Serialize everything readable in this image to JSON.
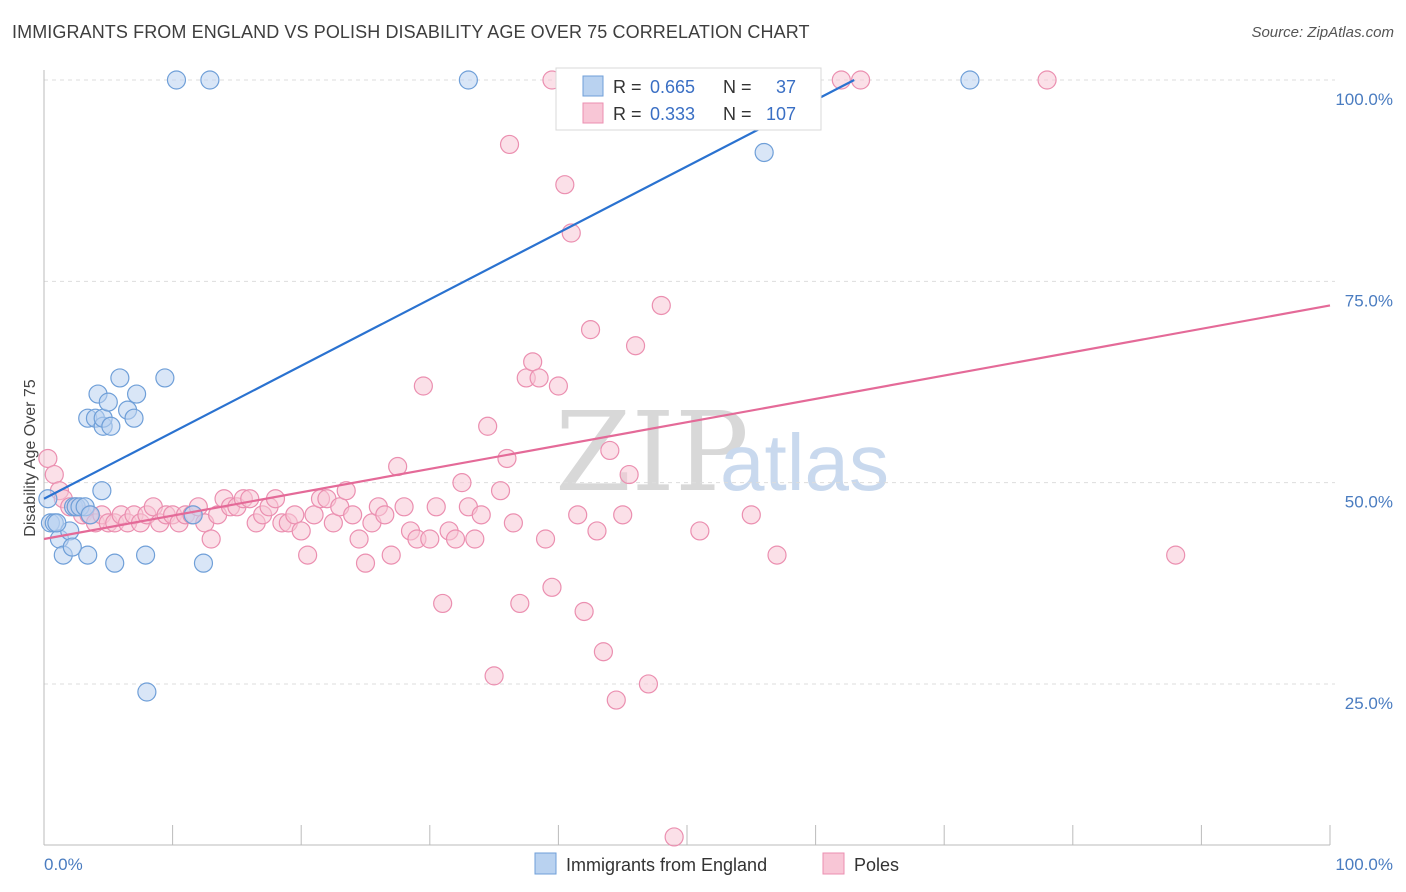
{
  "title": "IMMIGRANTS FROM ENGLAND VS POLISH DISABILITY AGE OVER 75 CORRELATION CHART",
  "source": "Source: ZipAtlas.com",
  "watermark": {
    "zip": "ZIP",
    "atlas": "atlas"
  },
  "colors": {
    "blue_fill": "#b9d2f0",
    "blue_stroke": "#6f9fd8",
    "blue_line": "#2a72d0",
    "pink_fill": "#f8c6d6",
    "pink_stroke": "#eb8fb0",
    "pink_line": "#e46a98",
    "grid": "#dddddd",
    "axis": "#bbbbbb",
    "tick_text": "#4a7cc0"
  },
  "legend": {
    "r_label": "R =",
    "n_label": "N =",
    "blue_r": "0.665",
    "blue_n": "37",
    "pink_r": "0.333",
    "pink_n": "107"
  },
  "chart_data": {
    "type": "scatter",
    "title": "IMMIGRANTS FROM ENGLAND VS POLISH DISABILITY AGE OVER 75 CORRELATION CHART",
    "xlabel": "",
    "ylabel": "Disability Age Over 75",
    "xlim": [
      0,
      100
    ],
    "ylim": [
      5,
      100
    ],
    "x_tick_labels": [
      "0.0%",
      "100.0%"
    ],
    "y_ticks": [
      25,
      50,
      75,
      100
    ],
    "y_tick_labels": [
      "25.0%",
      "50.0%",
      "75.0%",
      "100.0%"
    ],
    "grid": true,
    "legend_position": "top-center",
    "series": [
      {
        "name": "Immigrants from England",
        "r": 0.665,
        "n": 37,
        "trend": {
          "x": [
            0,
            63
          ],
          "y": [
            48,
            100
          ]
        },
        "points": [
          [
            0.3,
            48
          ],
          [
            0.5,
            45
          ],
          [
            0.8,
            45
          ],
          [
            1.2,
            43
          ],
          [
            1.5,
            41
          ],
          [
            2.0,
            44
          ],
          [
            2.3,
            47
          ],
          [
            2.5,
            47
          ],
          [
            2.8,
            47
          ],
          [
            3.2,
            47
          ],
          [
            3.4,
            41
          ],
          [
            3.6,
            46
          ],
          [
            3.4,
            58
          ],
          [
            4.0,
            58
          ],
          [
            4.2,
            61
          ],
          [
            4.5,
            49
          ],
          [
            4.6,
            57
          ],
          [
            4.6,
            58
          ],
          [
            5.0,
            60
          ],
          [
            5.2,
            57
          ],
          [
            5.5,
            40
          ],
          [
            5.9,
            63
          ],
          [
            6.5,
            59
          ],
          [
            7.0,
            58
          ],
          [
            7.2,
            61
          ],
          [
            7.9,
            41
          ],
          [
            8.0,
            24
          ],
          [
            9.4,
            63
          ],
          [
            11.6,
            46
          ],
          [
            12.4,
            40
          ],
          [
            10.3,
            100
          ],
          [
            12.9,
            100
          ],
          [
            33.0,
            100
          ],
          [
            56.0,
            91
          ],
          [
            72.0,
            100
          ],
          [
            1.0,
            45
          ],
          [
            2.2,
            42
          ]
        ]
      },
      {
        "name": "Poles",
        "r": 0.333,
        "n": 107,
        "trend": {
          "x": [
            0,
            100
          ],
          "y": [
            43,
            72
          ]
        },
        "points": [
          [
            0.3,
            53
          ],
          [
            0.8,
            51
          ],
          [
            1.2,
            49
          ],
          [
            1.5,
            48
          ],
          [
            2.0,
            47
          ],
          [
            2.5,
            47
          ],
          [
            3.0,
            46
          ],
          [
            3.5,
            46
          ],
          [
            4.0,
            45
          ],
          [
            4.5,
            46
          ],
          [
            5.0,
            45
          ],
          [
            5.5,
            45
          ],
          [
            6.0,
            46
          ],
          [
            6.5,
            45
          ],
          [
            7.0,
            46
          ],
          [
            7.5,
            45
          ],
          [
            8.0,
            46
          ],
          [
            8.5,
            47
          ],
          [
            9.0,
            45
          ],
          [
            9.5,
            46
          ],
          [
            10.0,
            46
          ],
          [
            10.5,
            45
          ],
          [
            11.0,
            46
          ],
          [
            11.5,
            46
          ],
          [
            12.0,
            47
          ],
          [
            12.5,
            45
          ],
          [
            13.0,
            43
          ],
          [
            13.5,
            46
          ],
          [
            14.0,
            48
          ],
          [
            14.5,
            47
          ],
          [
            15.0,
            47
          ],
          [
            15.5,
            48
          ],
          [
            16.0,
            48
          ],
          [
            16.5,
            45
          ],
          [
            17.0,
            46
          ],
          [
            17.5,
            47
          ],
          [
            18.0,
            48
          ],
          [
            18.5,
            45
          ],
          [
            19.0,
            45
          ],
          [
            19.5,
            46
          ],
          [
            20.0,
            44
          ],
          [
            20.5,
            41
          ],
          [
            21.0,
            46
          ],
          [
            21.5,
            48
          ],
          [
            22.0,
            48
          ],
          [
            22.5,
            45
          ],
          [
            23.0,
            47
          ],
          [
            23.5,
            49
          ],
          [
            24.0,
            46
          ],
          [
            24.5,
            43
          ],
          [
            25.0,
            40
          ],
          [
            25.5,
            45
          ],
          [
            26.0,
            47
          ],
          [
            26.5,
            46
          ],
          [
            27.0,
            41
          ],
          [
            27.5,
            52
          ],
          [
            28.0,
            47
          ],
          [
            28.5,
            44
          ],
          [
            29.0,
            43
          ],
          [
            29.5,
            62
          ],
          [
            30.0,
            43
          ],
          [
            30.5,
            47
          ],
          [
            31.0,
            35
          ],
          [
            31.5,
            44
          ],
          [
            32.0,
            43
          ],
          [
            32.5,
            50
          ],
          [
            33.0,
            47
          ],
          [
            33.5,
            43
          ],
          [
            34.0,
            46
          ],
          [
            34.5,
            57
          ],
          [
            35.0,
            26
          ],
          [
            35.5,
            49
          ],
          [
            36.0,
            53
          ],
          [
            36.5,
            45
          ],
          [
            37.0,
            35
          ],
          [
            37.5,
            63
          ],
          [
            38.0,
            65
          ],
          [
            38.5,
            63
          ],
          [
            39.0,
            43
          ],
          [
            39.5,
            37
          ],
          [
            40.0,
            62
          ],
          [
            40.5,
            87
          ],
          [
            41.0,
            81
          ],
          [
            41.5,
            46
          ],
          [
            42.0,
            34
          ],
          [
            42.5,
            69
          ],
          [
            43.0,
            44
          ],
          [
            43.5,
            29
          ],
          [
            44.0,
            54
          ],
          [
            44.5,
            23
          ],
          [
            45.0,
            46
          ],
          [
            45.5,
            51
          ],
          [
            46.0,
            67
          ],
          [
            47.0,
            25
          ],
          [
            48.0,
            72
          ],
          [
            49.0,
            6
          ],
          [
            51.0,
            44
          ],
          [
            55.0,
            46
          ],
          [
            57.0,
            41
          ],
          [
            36.2,
            92
          ],
          [
            39.5,
            100
          ],
          [
            44.0,
            100
          ],
          [
            50.0,
            100
          ],
          [
            62.0,
            100
          ],
          [
            63.5,
            100
          ],
          [
            78.0,
            100
          ],
          [
            88.0,
            41
          ]
        ]
      }
    ]
  }
}
